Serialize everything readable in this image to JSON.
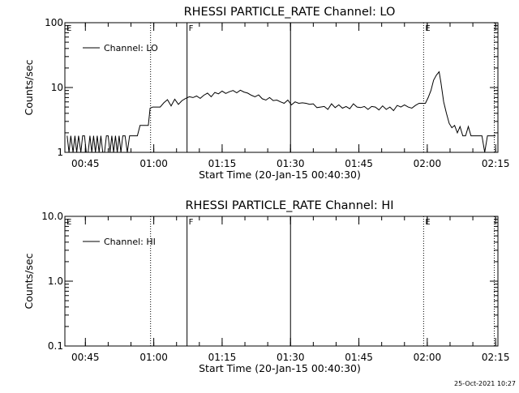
{
  "footer": {
    "timestamp": "25-Oct-2021 10:27"
  },
  "chart_data": [
    {
      "type": "line",
      "title": "RHESSI PARTICLE_RATE Channel: LO",
      "xlabel": "Start Time (20-Jan-15 00:40:30)",
      "ylabel": "Counts/sec",
      "yscale": "log",
      "ylim": [
        1,
        100
      ],
      "xlim_minutes": [
        40.5,
        135.5
      ],
      "yticks": [
        {
          "v": 1,
          "label": "1"
        },
        {
          "v": 10,
          "label": "10"
        },
        {
          "v": 100,
          "label": "100"
        }
      ],
      "xticks": [
        {
          "m": 45,
          "label": "00:45"
        },
        {
          "m": 60,
          "label": "01:00"
        },
        {
          "m": 75,
          "label": "01:15"
        },
        {
          "m": 90,
          "label": "01:30"
        },
        {
          "m": 105,
          "label": "01:45"
        },
        {
          "m": 120,
          "label": "02:00"
        },
        {
          "m": 135,
          "label": "02:15"
        }
      ],
      "legend": "top-left",
      "series": [
        {
          "name": "Channel: LO",
          "points": [
            [
              41.0,
              1.8
            ],
            [
              41.4,
              1.0
            ],
            [
              41.8,
              1.8
            ],
            [
              42.3,
              1.0
            ],
            [
              42.7,
              1.8
            ],
            [
              43.1,
              1.0
            ],
            [
              43.5,
              1.8
            ],
            [
              44.0,
              1.0
            ],
            [
              44.4,
              1.8
            ],
            [
              44.8,
              1.8
            ],
            [
              45.2,
              1.0
            ],
            [
              45.6,
              1.0
            ],
            [
              46.0,
              1.8
            ],
            [
              46.4,
              1.0
            ],
            [
              46.8,
              1.8
            ],
            [
              47.2,
              1.0
            ],
            [
              47.6,
              1.8
            ],
            [
              48.0,
              1.0
            ],
            [
              48.4,
              1.8
            ],
            [
              48.8,
              1.0
            ],
            [
              49.2,
              1.0
            ],
            [
              49.6,
              1.8
            ],
            [
              50.0,
              1.8
            ],
            [
              50.4,
              1.0
            ],
            [
              50.8,
              1.8
            ],
            [
              51.2,
              1.0
            ],
            [
              51.6,
              1.8
            ],
            [
              52.0,
              1.0
            ],
            [
              52.4,
              1.8
            ],
            [
              52.8,
              1.0
            ],
            [
              53.2,
              1.8
            ],
            [
              53.7,
              1.8
            ],
            [
              54.2,
              1.0
            ],
            [
              54.7,
              1.8
            ],
            [
              55.2,
              1.8
            ],
            [
              55.8,
              1.8
            ],
            [
              56.4,
              1.8
            ],
            [
              57.0,
              2.6
            ],
            [
              57.6,
              2.6
            ],
            [
              58.2,
              2.6
            ],
            [
              58.8,
              2.6
            ],
            [
              59.2,
              4.8
            ],
            [
              59.8,
              5.0
            ],
            [
              60.6,
              5.0
            ],
            [
              61.4,
              5.0
            ],
            [
              62.2,
              5.8
            ],
            [
              63.0,
              6.5
            ],
            [
              63.8,
              5.2
            ],
            [
              64.6,
              6.6
            ],
            [
              65.4,
              5.5
            ],
            [
              66.2,
              6.3
            ],
            [
              67.0,
              6.8
            ],
            [
              67.8,
              7.2
            ],
            [
              68.6,
              7.0
            ],
            [
              69.4,
              7.4
            ],
            [
              70.2,
              6.8
            ],
            [
              71.0,
              7.6
            ],
            [
              71.8,
              8.2
            ],
            [
              72.6,
              7.2
            ],
            [
              73.4,
              8.4
            ],
            [
              74.2,
              8.0
            ],
            [
              75.0,
              8.8
            ],
            [
              75.8,
              8.1
            ],
            [
              76.6,
              8.6
            ],
            [
              77.4,
              9.0
            ],
            [
              78.2,
              8.3
            ],
            [
              79.0,
              9.1
            ],
            [
              79.8,
              8.5
            ],
            [
              80.6,
              8.2
            ],
            [
              81.4,
              7.6
            ],
            [
              82.2,
              7.2
            ],
            [
              83.0,
              7.7
            ],
            [
              83.8,
              6.7
            ],
            [
              84.6,
              6.4
            ],
            [
              85.4,
              7.0
            ],
            [
              86.2,
              6.3
            ],
            [
              87.0,
              6.4
            ],
            [
              87.8,
              6.0
            ],
            [
              88.6,
              5.7
            ],
            [
              89.4,
              6.4
            ],
            [
              90.2,
              5.4
            ],
            [
              91.0,
              6.0
            ],
            [
              91.8,
              5.7
            ],
            [
              92.6,
              5.8
            ],
            [
              93.4,
              5.7
            ],
            [
              94.2,
              5.5
            ],
            [
              95.0,
              5.6
            ],
            [
              95.8,
              4.9
            ],
            [
              96.6,
              5.0
            ],
            [
              97.4,
              5.1
            ],
            [
              98.2,
              4.6
            ],
            [
              99.0,
              5.6
            ],
            [
              99.8,
              4.9
            ],
            [
              100.6,
              5.4
            ],
            [
              101.4,
              4.8
            ],
            [
              102.2,
              5.1
            ],
            [
              103.0,
              4.7
            ],
            [
              103.8,
              5.6
            ],
            [
              104.6,
              5.0
            ],
            [
              105.4,
              4.9
            ],
            [
              106.2,
              5.1
            ],
            [
              107.0,
              4.6
            ],
            [
              107.8,
              5.1
            ],
            [
              108.6,
              5.0
            ],
            [
              109.4,
              4.5
            ],
            [
              110.2,
              5.2
            ],
            [
              111.0,
              4.6
            ],
            [
              111.8,
              5.0
            ],
            [
              112.6,
              4.4
            ],
            [
              113.4,
              5.3
            ],
            [
              114.2,
              5.0
            ],
            [
              115.0,
              5.4
            ],
            [
              115.8,
              5.0
            ],
            [
              116.6,
              4.8
            ],
            [
              117.4,
              5.3
            ],
            [
              118.2,
              5.7
            ],
            [
              119.0,
              5.7
            ],
            [
              119.6,
              5.7
            ],
            [
              120.2,
              7.0
            ],
            [
              120.8,
              9.0
            ],
            [
              121.4,
              13.0
            ],
            [
              122.0,
              15.5
            ],
            [
              122.6,
              17.5
            ],
            [
              123.0,
              12.0
            ],
            [
              123.6,
              6.0
            ],
            [
              124.2,
              4.0
            ],
            [
              124.8,
              2.8
            ],
            [
              125.4,
              2.4
            ],
            [
              126.0,
              2.6
            ],
            [
              126.6,
              2.0
            ],
            [
              127.2,
              2.5
            ],
            [
              127.8,
              1.8
            ],
            [
              128.4,
              1.8
            ],
            [
              129.0,
              2.5
            ],
            [
              129.6,
              1.8
            ],
            [
              130.2,
              1.8
            ],
            [
              130.8,
              1.8
            ],
            [
              131.4,
              1.8
            ],
            [
              132.0,
              1.8
            ],
            [
              132.6,
              1.0
            ],
            [
              133.2,
              1.8
            ],
            [
              133.8,
              1.8
            ],
            [
              134.4,
              1.8
            ],
            [
              135.0,
              1.8
            ]
          ]
        }
      ],
      "markers": [
        {
          "m": 40.5,
          "label": "E",
          "style": "none"
        },
        {
          "m": 59.3,
          "label": "",
          "style": "dotted"
        },
        {
          "m": 67.3,
          "label": "F",
          "style": "solid"
        },
        {
          "m": 90.0,
          "label": "",
          "style": "solid"
        },
        {
          "m": 119.2,
          "label": "E",
          "style": "dotted"
        },
        {
          "m": 134.7,
          "label": "",
          "style": "dotted"
        }
      ]
    },
    {
      "type": "line",
      "title": "RHESSI PARTICLE_RATE Channel: HI",
      "xlabel": "Start Time (20-Jan-15 00:40:30)",
      "ylabel": "Counts/sec",
      "yscale": "log",
      "ylim": [
        0.1,
        10
      ],
      "xlim_minutes": [
        40.5,
        135.5
      ],
      "yticks": [
        {
          "v": 0.1,
          "label": "0.1"
        },
        {
          "v": 1,
          "label": "1.0"
        },
        {
          "v": 10,
          "label": "10.0"
        }
      ],
      "xticks": [
        {
          "m": 45,
          "label": "00:45"
        },
        {
          "m": 60,
          "label": "01:00"
        },
        {
          "m": 75,
          "label": "01:15"
        },
        {
          "m": 90,
          "label": "01:30"
        },
        {
          "m": 105,
          "label": "01:45"
        },
        {
          "m": 120,
          "label": "02:00"
        },
        {
          "m": 135,
          "label": "02:15"
        }
      ],
      "legend": "top-left",
      "series": [
        {
          "name": "Channel: HI",
          "points": []
        }
      ],
      "markers": [
        {
          "m": 40.5,
          "label": "E",
          "style": "none"
        },
        {
          "m": 59.3,
          "label": "",
          "style": "dotted"
        },
        {
          "m": 67.3,
          "label": "F",
          "style": "solid"
        },
        {
          "m": 90.0,
          "label": "",
          "style": "solid"
        },
        {
          "m": 119.2,
          "label": "E",
          "style": "dotted"
        },
        {
          "m": 134.7,
          "label": "",
          "style": "dotted"
        }
      ]
    }
  ]
}
